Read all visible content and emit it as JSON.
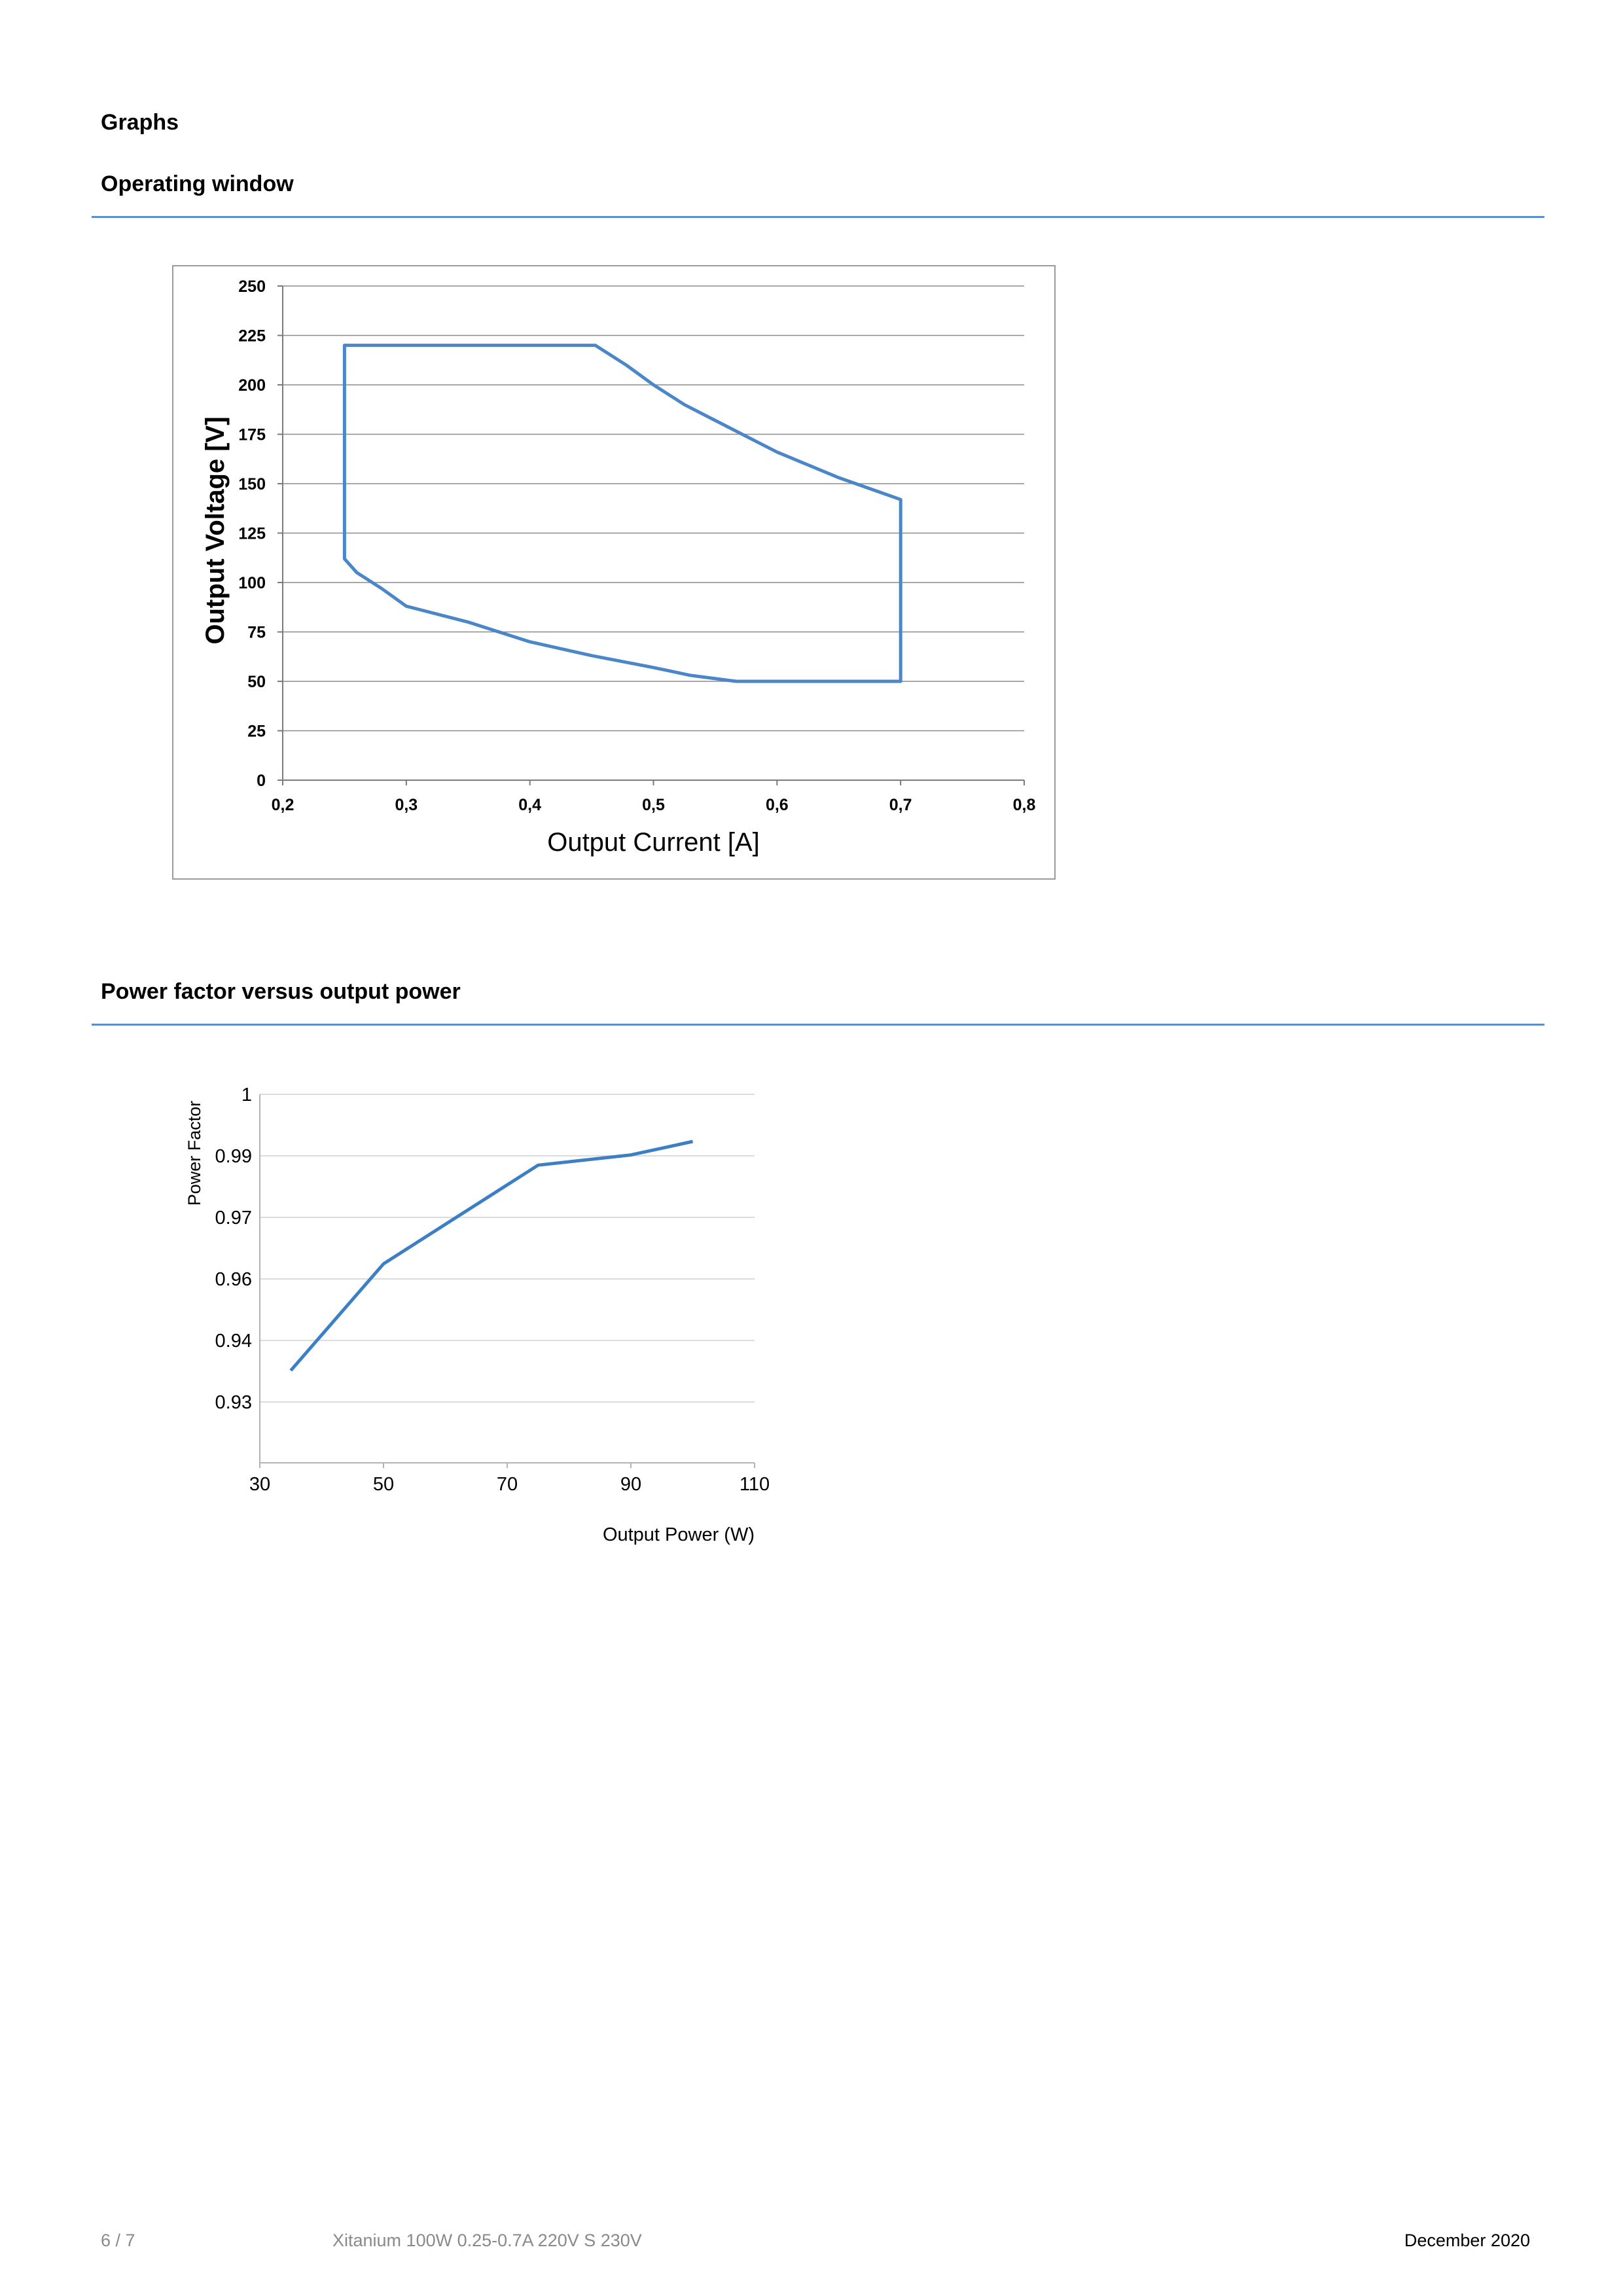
{
  "page": {
    "section_title": "Graphs",
    "operating_window_title": "Operating window",
    "power_factor_title": "Power factor versus output power"
  },
  "chart_data": [
    {
      "type": "line",
      "title": "Operating window",
      "xlabel": "Output Current [A]",
      "ylabel": "Output Voltage [V]",
      "xlim": [
        0.2,
        0.8
      ],
      "ylim": [
        0,
        250
      ],
      "x_ticks": [
        "0,2",
        "0,3",
        "0,4",
        "0,5",
        "0,6",
        "0,7",
        "0,8"
      ],
      "x_tick_values": [
        0.2,
        0.3,
        0.4,
        0.5,
        0.6,
        0.7,
        0.8
      ],
      "y_ticks": [
        "0",
        "25",
        "50",
        "75",
        "100",
        "125",
        "150",
        "175",
        "200",
        "225",
        "250"
      ],
      "y_tick_values": [
        0,
        25,
        50,
        75,
        100,
        125,
        150,
        175,
        200,
        225,
        250
      ],
      "grid": "horizontal",
      "series": [
        {
          "color": "#4a86c8",
          "closed": true,
          "points": [
            [
              0.25,
              220
            ],
            [
              0.453,
              220
            ],
            [
              0.478,
              210
            ],
            [
              0.5,
              200
            ],
            [
              0.525,
              190
            ],
            [
              0.55,
              182
            ],
            [
              0.6,
              166
            ],
            [
              0.65,
              153
            ],
            [
              0.7,
              142
            ],
            [
              0.7,
              50
            ],
            [
              0.567,
              50
            ],
            [
              0.53,
              53
            ],
            [
              0.5,
              57
            ],
            [
              0.45,
              63
            ],
            [
              0.4,
              70
            ],
            [
              0.37,
              76
            ],
            [
              0.35,
              80
            ],
            [
              0.3,
              88
            ],
            [
              0.28,
              97
            ],
            [
              0.26,
              105
            ],
            [
              0.25,
              112
            ],
            [
              0.25,
              220
            ]
          ]
        }
      ]
    },
    {
      "type": "line",
      "title": "Power factor versus output power",
      "xlabel": "Output Power (W)",
      "ylabel": "Power Factor",
      "xlim": [
        30,
        110
      ],
      "x_ticks": [
        "30",
        "50",
        "70",
        "90",
        "110"
      ],
      "x_tick_values": [
        30,
        50,
        70,
        90,
        110
      ],
      "y_ticks": [
        "1",
        "0.99",
        "0.97",
        "0.96",
        "0.94",
        "0.93"
      ],
      "grid": "horizontal",
      "series": [
        {
          "color": "#3c7fc4",
          "x": [
            35,
            50,
            60,
            75,
            90,
            100
          ],
          "y": [
            0.935,
            0.963,
            0.9695,
            0.9865,
            0.9895,
            0.992
          ]
        }
      ]
    }
  ],
  "footer": {
    "page_number": "6 / 7",
    "product_name": "Xitanium 100W 0.25-0.7A 220V S 230V",
    "date": "December 2020"
  }
}
